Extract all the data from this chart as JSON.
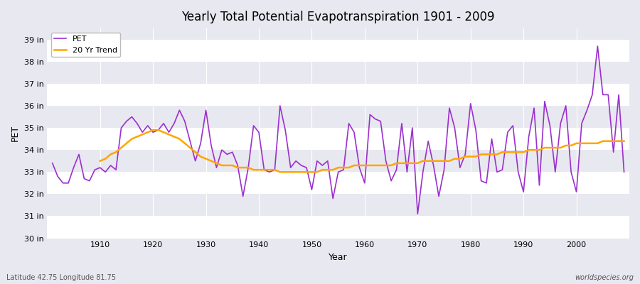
{
  "title": "Yearly Total Potential Evapotranspiration 1901 - 2009",
  "xlabel": "Year",
  "ylabel": "PET",
  "footnote_left": "Latitude 42.75 Longitude 81.75",
  "footnote_right": "worldspecies.org",
  "pet_color": "#9B30CC",
  "trend_color": "#FFA500",
  "background_color": "#E8E8F0",
  "grid_color": "#FFFFFF",
  "ylim": [
    30,
    39.5
  ],
  "yticks": [
    30,
    31,
    32,
    33,
    34,
    35,
    36,
    37,
    38,
    39
  ],
  "ytick_labels": [
    "30 in",
    "31 in",
    "32 in",
    "33 in",
    "34 in",
    "35 in",
    "36 in",
    "37 in",
    "38 in",
    "39 in"
  ],
  "xlim": [
    1900,
    2010
  ],
  "xticks": [
    1910,
    1920,
    1930,
    1940,
    1950,
    1960,
    1970,
    1980,
    1990,
    2000
  ],
  "years": [
    1901,
    1902,
    1903,
    1904,
    1905,
    1906,
    1907,
    1908,
    1909,
    1910,
    1911,
    1912,
    1913,
    1914,
    1915,
    1916,
    1917,
    1918,
    1919,
    1920,
    1921,
    1922,
    1923,
    1924,
    1925,
    1926,
    1927,
    1928,
    1929,
    1930,
    1931,
    1932,
    1933,
    1934,
    1935,
    1936,
    1937,
    1938,
    1939,
    1940,
    1941,
    1942,
    1943,
    1944,
    1945,
    1946,
    1947,
    1948,
    1949,
    1950,
    1951,
    1952,
    1953,
    1954,
    1955,
    1956,
    1957,
    1958,
    1959,
    1960,
    1961,
    1962,
    1963,
    1964,
    1965,
    1966,
    1967,
    1968,
    1969,
    1970,
    1971,
    1972,
    1973,
    1974,
    1975,
    1976,
    1977,
    1978,
    1979,
    1980,
    1981,
    1982,
    1983,
    1984,
    1985,
    1986,
    1987,
    1988,
    1989,
    1990,
    1991,
    1992,
    1993,
    1994,
    1995,
    1996,
    1997,
    1998,
    1999,
    2000,
    2001,
    2002,
    2003,
    2004,
    2005,
    2006,
    2007,
    2008,
    2009
  ],
  "pet_values": [
    33.4,
    32.8,
    32.5,
    32.5,
    33.2,
    33.8,
    32.7,
    32.6,
    33.1,
    33.2,
    33.0,
    33.3,
    33.1,
    35.0,
    35.3,
    35.5,
    35.2,
    34.8,
    35.1,
    34.8,
    34.9,
    35.2,
    34.8,
    35.2,
    35.8,
    35.3,
    34.4,
    33.5,
    34.3,
    35.8,
    34.2,
    33.2,
    34.0,
    33.8,
    33.9,
    33.3,
    31.9,
    33.2,
    35.1,
    34.8,
    33.1,
    33.0,
    33.1,
    36.0,
    34.9,
    33.2,
    33.5,
    33.3,
    33.2,
    32.2,
    33.5,
    33.3,
    33.5,
    31.8,
    33.0,
    33.1,
    35.2,
    34.8,
    33.2,
    32.5,
    35.6,
    35.4,
    35.3,
    33.5,
    32.6,
    33.1,
    35.2,
    33.0,
    35.0,
    31.1,
    33.0,
    34.4,
    33.3,
    31.9,
    33.1,
    35.9,
    35.0,
    33.2,
    33.8,
    36.1,
    34.9,
    32.6,
    32.5,
    34.5,
    33.0,
    33.1,
    34.8,
    35.1,
    33.0,
    32.1,
    34.6,
    35.9,
    32.4,
    36.2,
    35.1,
    33.0,
    35.2,
    36.0,
    33.0,
    32.1,
    35.2,
    35.8,
    36.5,
    38.7,
    36.5,
    36.5,
    33.9,
    36.5,
    33.0
  ],
  "trend_years": [
    1910,
    1911,
    1912,
    1913,
    1914,
    1915,
    1916,
    1917,
    1918,
    1919,
    1920,
    1921,
    1922,
    1923,
    1924,
    1925,
    1926,
    1927,
    1928,
    1929,
    1930,
    1931,
    1932,
    1933,
    1934,
    1935,
    1936,
    1937,
    1938,
    1939,
    1940,
    1941,
    1942,
    1943,
    1944,
    1945,
    1946,
    1947,
    1948,
    1949,
    1950,
    1951,
    1952,
    1953,
    1954,
    1955,
    1956,
    1957,
    1958,
    1959,
    1960,
    1961,
    1962,
    1963,
    1964,
    1965,
    1966,
    1967,
    1968,
    1969,
    1970,
    1971,
    1972,
    1973,
    1974,
    1975,
    1976,
    1977,
    1978,
    1979,
    1980,
    1981,
    1982,
    1983,
    1984,
    1985,
    1986,
    1987,
    1988,
    1989,
    1990,
    1991,
    1992,
    1993,
    1994,
    1995,
    1996,
    1997,
    1998,
    1999,
    2000,
    2001,
    2002,
    2003,
    2004,
    2005,
    2006,
    2007,
    2008,
    2009
  ],
  "trend_values": [
    33.5,
    33.6,
    33.8,
    33.9,
    34.1,
    34.3,
    34.5,
    34.6,
    34.7,
    34.8,
    34.9,
    34.9,
    34.8,
    34.7,
    34.6,
    34.5,
    34.3,
    34.1,
    33.9,
    33.7,
    33.6,
    33.5,
    33.4,
    33.3,
    33.3,
    33.3,
    33.2,
    33.2,
    33.2,
    33.1,
    33.1,
    33.1,
    33.1,
    33.1,
    33.0,
    33.0,
    33.0,
    33.0,
    33.0,
    33.0,
    33.0,
    33.0,
    33.1,
    33.1,
    33.1,
    33.2,
    33.2,
    33.2,
    33.3,
    33.3,
    33.3,
    33.3,
    33.3,
    33.3,
    33.3,
    33.3,
    33.4,
    33.4,
    33.4,
    33.4,
    33.4,
    33.5,
    33.5,
    33.5,
    33.5,
    33.5,
    33.5,
    33.6,
    33.6,
    33.7,
    33.7,
    33.7,
    33.8,
    33.8,
    33.8,
    33.8,
    33.9,
    33.9,
    33.9,
    33.9,
    33.9,
    34.0,
    34.0,
    34.0,
    34.1,
    34.1,
    34.1,
    34.1,
    34.2,
    34.2,
    34.3,
    34.3,
    34.3,
    34.3,
    34.3,
    34.4,
    34.4,
    34.4,
    34.4,
    34.4
  ]
}
